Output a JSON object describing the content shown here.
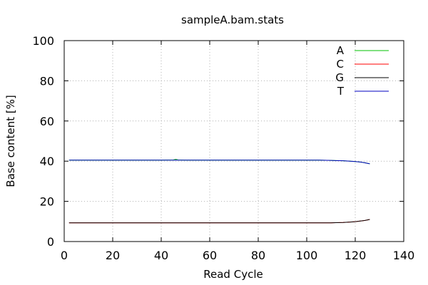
{
  "chart_data": {
    "type": "line",
    "title": "sampleA.bam.stats",
    "xlabel": "Read Cycle",
    "ylabel": "Base content [%]",
    "xlim": [
      0,
      140
    ],
    "ylim": [
      0,
      100
    ],
    "xticks": [
      "0",
      "20",
      "40",
      "60",
      "80",
      "100",
      "120",
      "140"
    ],
    "yticks": [
      "0",
      "20",
      "40",
      "60",
      "80",
      "100"
    ],
    "grid": true,
    "legend_position": "top-right",
    "series": [
      {
        "name": "A",
        "color": "#00c000",
        "x": [
          2,
          10,
          20,
          30,
          40,
          45,
          46,
          47,
          50,
          60,
          70,
          80,
          90,
          100,
          105,
          110,
          112,
          115,
          118,
          120,
          122,
          124,
          126
        ],
        "y": [
          40.5,
          40.5,
          40.5,
          40.5,
          40.5,
          40.6,
          40.9,
          40.6,
          40.5,
          40.5,
          40.5,
          40.5,
          40.5,
          40.5,
          40.5,
          40.4,
          40.3,
          40.2,
          40.0,
          39.8,
          39.6,
          39.2,
          38.7
        ]
      },
      {
        "name": "C",
        "color": "#ff0000",
        "x": [
          2,
          10,
          20,
          30,
          40,
          50,
          60,
          70,
          80,
          90,
          100,
          105,
          110,
          112,
          115,
          118,
          120,
          122,
          124,
          126
        ],
        "y": [
          9.3,
          9.3,
          9.3,
          9.3,
          9.3,
          9.3,
          9.3,
          9.3,
          9.3,
          9.3,
          9.3,
          9.3,
          9.3,
          9.4,
          9.5,
          9.7,
          9.9,
          10.2,
          10.5,
          11.0
        ]
      },
      {
        "name": "G",
        "color": "#000000",
        "x": [
          2,
          10,
          20,
          30,
          40,
          50,
          60,
          70,
          80,
          90,
          100,
          105,
          110,
          112,
          115,
          118,
          120,
          122,
          124,
          126
        ],
        "y": [
          9.3,
          9.3,
          9.3,
          9.3,
          9.3,
          9.3,
          9.3,
          9.3,
          9.3,
          9.3,
          9.3,
          9.3,
          9.3,
          9.4,
          9.5,
          9.7,
          9.9,
          10.2,
          10.5,
          11.0
        ]
      },
      {
        "name": "T",
        "color": "#0000c0",
        "x": [
          2,
          10,
          20,
          30,
          40,
          50,
          60,
          70,
          80,
          90,
          100,
          105,
          110,
          112,
          115,
          118,
          120,
          122,
          124,
          126
        ],
        "y": [
          40.5,
          40.5,
          40.5,
          40.5,
          40.5,
          40.5,
          40.5,
          40.5,
          40.5,
          40.5,
          40.5,
          40.5,
          40.4,
          40.3,
          40.2,
          40.0,
          39.8,
          39.6,
          39.2,
          38.7
        ]
      }
    ]
  }
}
